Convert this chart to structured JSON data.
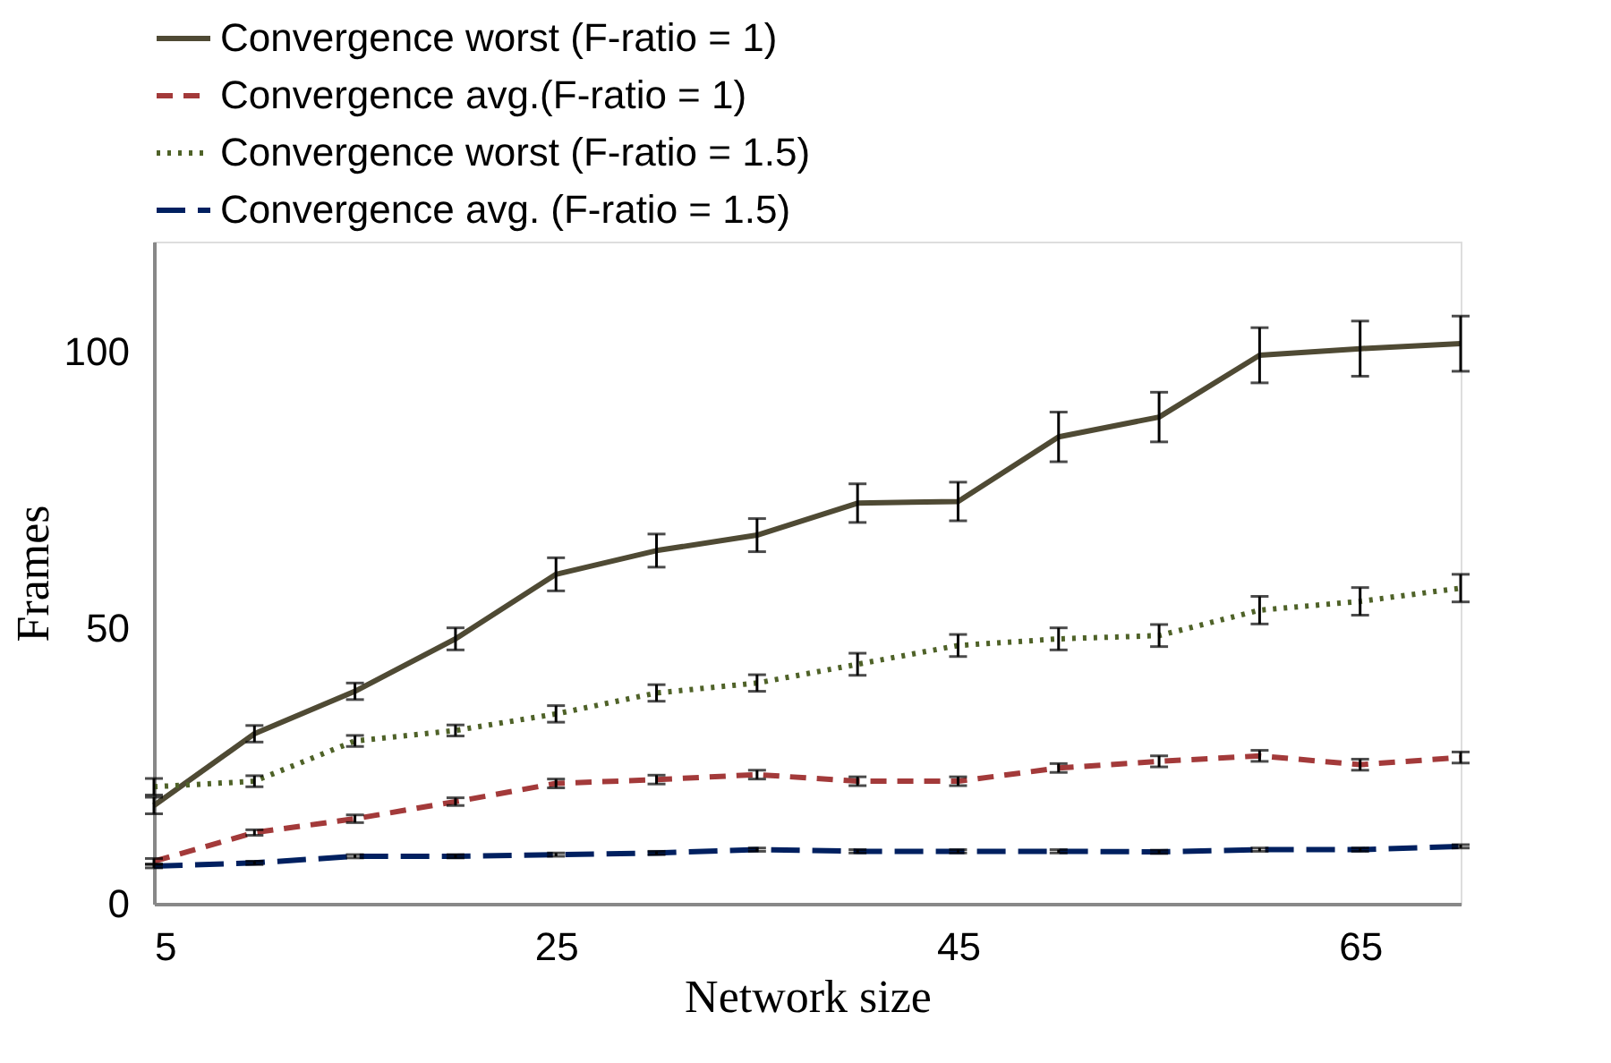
{
  "chart_data": {
    "type": "line",
    "xlabel": "Network size",
    "ylabel": "Frames",
    "x": [
      5,
      10,
      15,
      20,
      25,
      30,
      35,
      40,
      45,
      50,
      55,
      60,
      65,
      70
    ],
    "xlim": [
      5,
      70
    ],
    "xticks": [
      5,
      25,
      45,
      65
    ],
    "ylim": [
      0,
      120
    ],
    "yticks": [
      0,
      50,
      100
    ],
    "grid": false,
    "legend": "top",
    "marker": "none",
    "series": [
      {
        "name": "Convergence worst (F-ratio = 1)",
        "color": "#4f4a34",
        "line_style": "solid",
        "values": [
          17.8,
          30.8,
          38.5,
          48,
          59.7,
          64,
          66.8,
          72.6,
          72.9,
          84.6,
          88.2,
          99.4,
          100.6,
          101.5
        ],
        "errors": [
          1.5,
          1.5,
          1.5,
          2,
          3,
          3,
          3,
          3.5,
          3.5,
          4.5,
          4.5,
          5,
          5,
          5
        ]
      },
      {
        "name": "Convergence avg.(F-ratio = 1)",
        "color": "#a33a3a",
        "line_style": "dashed",
        "values": [
          7.7,
          12.9,
          15.4,
          18.5,
          21.8,
          22.5,
          23.4,
          22.2,
          22.2,
          24.6,
          25.8,
          26.8,
          25.2,
          26.5
        ],
        "errors": [
          0.5,
          0.5,
          0.7,
          0.7,
          0.8,
          0.8,
          0.8,
          0.8,
          0.8,
          0.8,
          1,
          1,
          1,
          1
        ]
      },
      {
        "name": "Convergence worst (F-ratio = 1.5)",
        "color": "#4f6228",
        "line_style": "dotted",
        "values": [
          21.2,
          22.2,
          29.5,
          31.4,
          34.4,
          38.2,
          40,
          43.4,
          46.8,
          48,
          48.6,
          53.2,
          54.8,
          57.2
        ],
        "errors": [
          1.5,
          1,
          1,
          1,
          1.5,
          1.5,
          1.5,
          2,
          2,
          2,
          2,
          2.5,
          2.5,
          2.5
        ]
      },
      {
        "name": "Convergence avg. (F-ratio = 1.5)",
        "color": "#002060",
        "line_style": "longdash",
        "values": [
          6.8,
          7.4,
          8.6,
          8.6,
          8.9,
          9.2,
          9.8,
          9.5,
          9.5,
          9.5,
          9.4,
          9.8,
          9.8,
          10.4
        ],
        "errors": [
          0.3,
          0.3,
          0.3,
          0.3,
          0.3,
          0.3,
          0.3,
          0.3,
          0.3,
          0.3,
          0.3,
          0.3,
          0.3,
          0.3
        ]
      }
    ]
  }
}
